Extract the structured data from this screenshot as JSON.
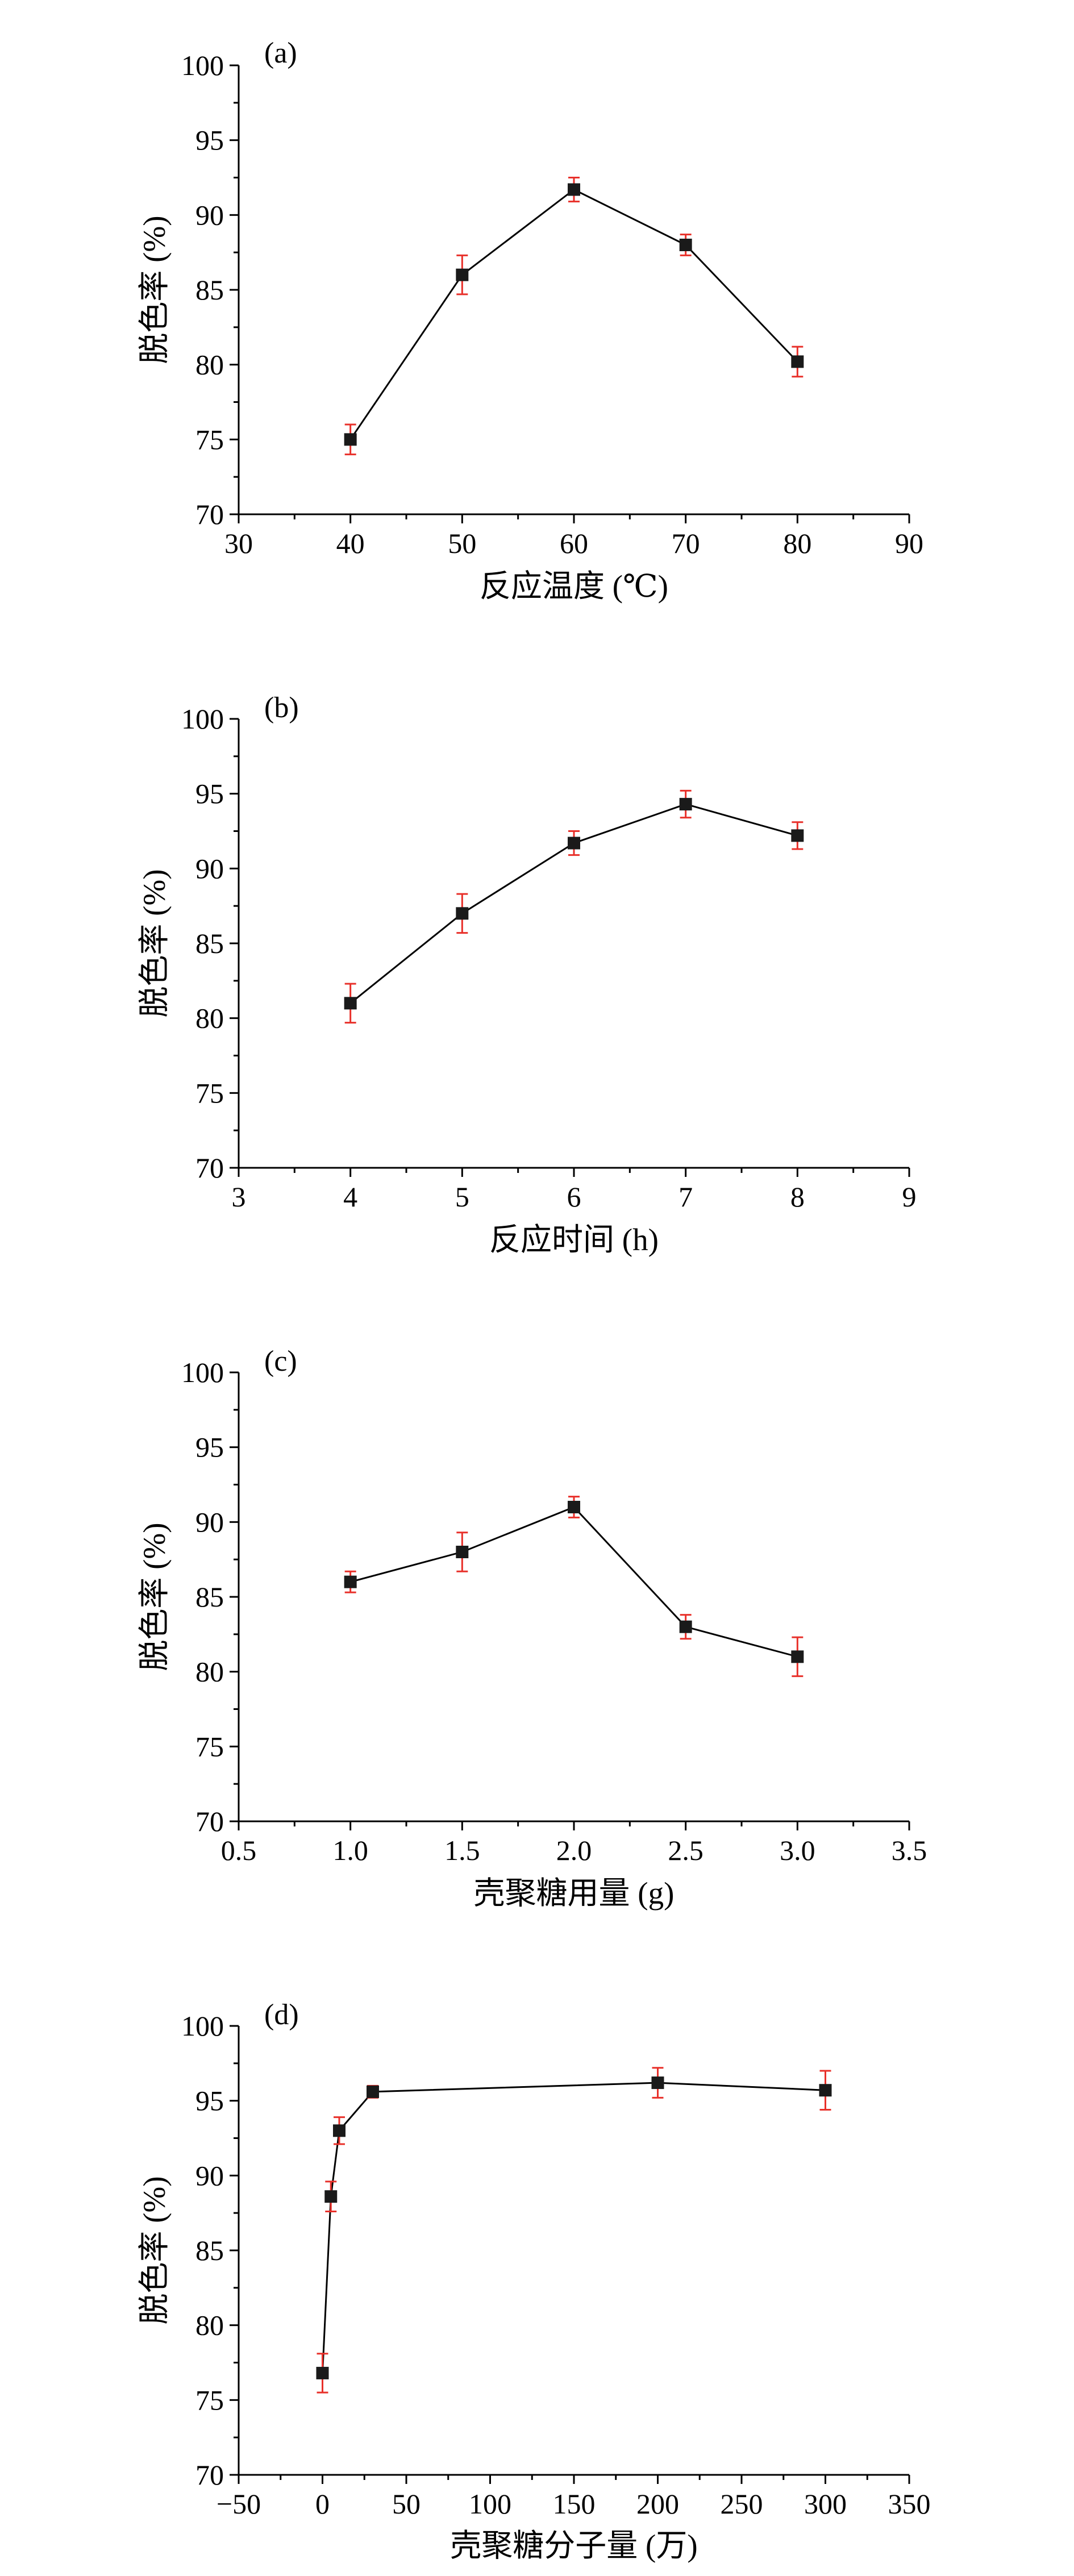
{
  "chart_data": [
    {
      "type": "line",
      "panel_label": "(a)",
      "xlabel": "反应温度 (℃)",
      "ylabel": "脱色率 (%)",
      "xlim": [
        30,
        90
      ],
      "ylim": [
        70,
        100
      ],
      "x_ticks": [
        30,
        40,
        50,
        60,
        70,
        80,
        90
      ],
      "y_ticks": [
        70,
        75,
        80,
        85,
        90,
        95,
        100
      ],
      "x_tick_labels": [
        "30",
        "40",
        "50",
        "60",
        "70",
        "80",
        "90"
      ],
      "y_tick_labels": [
        "70",
        "75",
        "80",
        "85",
        "90",
        "95",
        "100"
      ],
      "series": [
        {
          "x": [
            40,
            50,
            60,
            70,
            80
          ],
          "y": [
            75.0,
            86.0,
            91.7,
            88.0,
            80.2
          ],
          "error": [
            1.0,
            1.3,
            0.8,
            0.7,
            1.0
          ]
        }
      ],
      "grid": false,
      "marker": "square",
      "line_color": "#000000",
      "errorbar_color": "#e8302a"
    },
    {
      "type": "line",
      "panel_label": "(b)",
      "xlabel": "反应时间 (h)",
      "ylabel": "脱色率 (%)",
      "xlim": [
        3,
        9
      ],
      "ylim": [
        70,
        100
      ],
      "x_ticks": [
        3,
        4,
        5,
        6,
        7,
        8,
        9
      ],
      "y_ticks": [
        70,
        75,
        80,
        85,
        90,
        95,
        100
      ],
      "x_tick_labels": [
        "3",
        "4",
        "5",
        "6",
        "7",
        "8",
        "9"
      ],
      "y_tick_labels": [
        "70",
        "75",
        "80",
        "85",
        "90",
        "95",
        "100"
      ],
      "series": [
        {
          "x": [
            4,
            5,
            6,
            7,
            8
          ],
          "y": [
            81.0,
            87.0,
            91.7,
            94.3,
            92.2
          ],
          "error": [
            1.3,
            1.3,
            0.8,
            0.9,
            0.9
          ]
        }
      ],
      "grid": false,
      "marker": "square",
      "line_color": "#000000",
      "errorbar_color": "#e8302a"
    },
    {
      "type": "line",
      "panel_label": "(c)",
      "xlabel": "壳聚糖用量 (g)",
      "ylabel": "脱色率 (%)",
      "xlim": [
        0.5,
        3.5
      ],
      "ylim": [
        70,
        100
      ],
      "x_ticks": [
        0.5,
        1.0,
        1.5,
        2.0,
        2.5,
        3.0,
        3.5
      ],
      "y_ticks": [
        70,
        75,
        80,
        85,
        90,
        95,
        100
      ],
      "x_tick_labels": [
        "0.5",
        "1.0",
        "1.5",
        "2.0",
        "2.5",
        "3.0",
        "3.5"
      ],
      "y_tick_labels": [
        "70",
        "75",
        "80",
        "85",
        "90",
        "95",
        "100"
      ],
      "series": [
        {
          "x": [
            1.0,
            1.5,
            2.0,
            2.5,
            3.0
          ],
          "y": [
            86.0,
            88.0,
            91.0,
            83.0,
            81.0
          ],
          "error": [
            0.7,
            1.3,
            0.7,
            0.8,
            1.3
          ]
        }
      ],
      "grid": false,
      "marker": "square",
      "line_color": "#000000",
      "errorbar_color": "#e8302a"
    },
    {
      "type": "line",
      "panel_label": "(d)",
      "xlabel": "壳聚糖分子量 (万)",
      "ylabel": "脱色率 (%)",
      "xlim": [
        -50,
        350
      ],
      "ylim": [
        70,
        100
      ],
      "x_ticks": [
        -50,
        0,
        50,
        100,
        150,
        200,
        250,
        300,
        350
      ],
      "y_ticks": [
        70,
        75,
        80,
        85,
        90,
        95,
        100
      ],
      "x_tick_labels": [
        "−50",
        "0",
        "50",
        "100",
        "150",
        "200",
        "250",
        "300",
        "350"
      ],
      "y_tick_labels": [
        "70",
        "75",
        "80",
        "85",
        "90",
        "95",
        "100"
      ],
      "series": [
        {
          "x": [
            0,
            5,
            10,
            30,
            200,
            300
          ],
          "y": [
            76.8,
            88.6,
            93.0,
            95.6,
            96.2,
            95.7
          ],
          "error": [
            1.3,
            1.0,
            0.9,
            0.4,
            1.0,
            1.3
          ]
        }
      ],
      "grid": false,
      "marker": "square",
      "line_color": "#000000",
      "errorbar_color": "#e8302a"
    }
  ]
}
